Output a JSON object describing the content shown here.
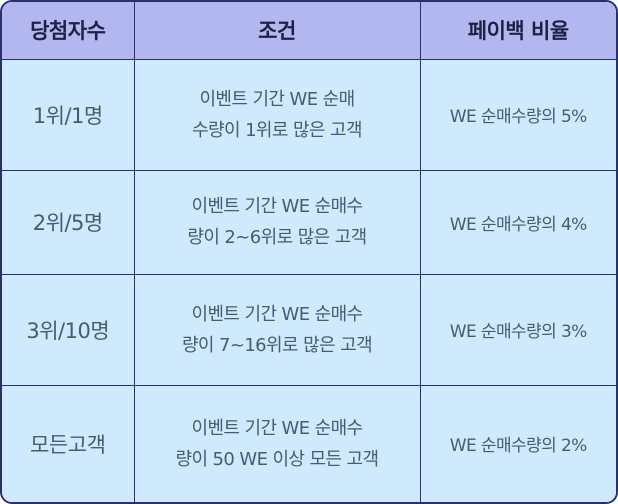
{
  "header": {
    "winners": "당첨자수",
    "condition": "조건",
    "payback_rate": "페이백 비율"
  },
  "rows": [
    {
      "winners": "1위/1명",
      "condition_line1": "이벤트 기간 WE 순매",
      "condition_line2": "수량이 1위로 많은 고객",
      "rate": "WE 순매수량의 5%"
    },
    {
      "winners": "2위/5명",
      "condition_line1": "이벤트 기간 WE 순매수",
      "condition_line2": "량이 2~6위로 많은 고객",
      "rate": "WE 순매수량의 4%"
    },
    {
      "winners": "3위/10명",
      "condition_line1": "이벤트 기간 WE 순매수",
      "condition_line2": "량이 7~16위로 많은 고객",
      "rate": "WE 순매수량의 3%"
    },
    {
      "winners": "모든고객",
      "condition_line1": "이벤트 기간 WE 순매수",
      "condition_line2": "량이 50 WE 이상 모든 고객",
      "rate": "WE 순매수량의 2%"
    }
  ],
  "colors": {
    "header_bg": "#b3b7ef",
    "cell_bg": "#cfeafc",
    "border": "#2a2f6e",
    "header_text": "#1e2147",
    "cell_text": "#4a5a74"
  }
}
